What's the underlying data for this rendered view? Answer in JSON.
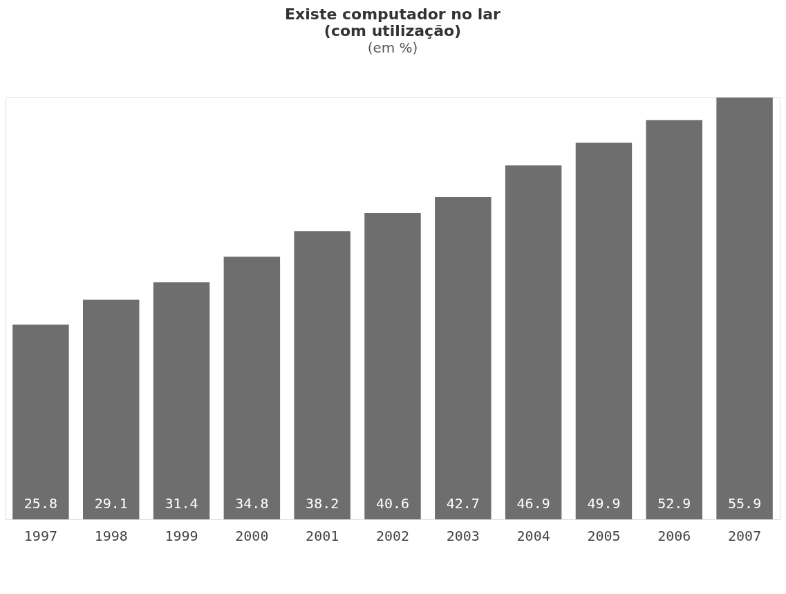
{
  "chart_data": {
    "type": "bar",
    "title": "Existe computador no lar\n(com utilização)",
    "subtitle": "(em %)",
    "categories": [
      "1997",
      "1998",
      "1999",
      "2000",
      "2001",
      "2002",
      "2003",
      "2004",
      "2005",
      "2006",
      "2007"
    ],
    "values": [
      25.8,
      29.1,
      31.4,
      34.8,
      38.2,
      40.6,
      42.7,
      46.9,
      49.9,
      52.9,
      55.9
    ],
    "color": "#6e6e6e",
    "data_labels": true,
    "tick_labels": "x",
    "grid": false
  }
}
